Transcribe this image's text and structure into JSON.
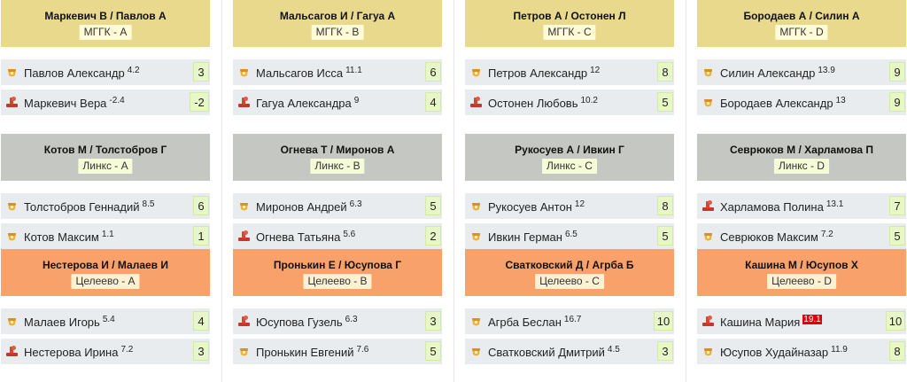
{
  "groups": [
    {
      "head_color": "#e9d98c",
      "badge_color": "#fffbd6",
      "matches": [
        {
          "title": "Маркевич В / Павлов А",
          "team": "МГГК - A",
          "players": [
            {
              "name": "Павлов Александр",
              "rating": "4.2",
              "score": "3",
              "icon": "male-player-icon",
              "hot": false
            },
            {
              "name": "Маркевич Вера",
              "rating": "-2.4",
              "score": "-2",
              "icon": "female-player-icon",
              "hot": false
            }
          ]
        },
        {
          "title": "Мальсагов И / Гагуа А",
          "team": "МГГК - B",
          "players": [
            {
              "name": "Мальсагов Исса",
              "rating": "11.1",
              "score": "6",
              "icon": "male-player-icon",
              "hot": false
            },
            {
              "name": "Гагуа Александра",
              "rating": "9",
              "score": "4",
              "icon": "female-player-icon",
              "hot": false
            }
          ]
        },
        {
          "title": "Петров А / Остонен Л",
          "team": "МГГК - C",
          "players": [
            {
              "name": "Петров Александр",
              "rating": "12",
              "score": "8",
              "icon": "male-player-icon",
              "hot": false
            },
            {
              "name": "Остонен Любовь",
              "rating": "10.2",
              "score": "5",
              "icon": "female-player-icon",
              "hot": false
            }
          ]
        },
        {
          "title": "Бородаев А / Силин А",
          "team": "МГГК - D",
          "players": [
            {
              "name": "Силин Александр",
              "rating": "13.9",
              "score": "9",
              "icon": "male-player-icon",
              "hot": false
            },
            {
              "name": "Бородаев Александр",
              "rating": "13",
              "score": "9",
              "icon": "male-player-icon",
              "hot": false
            }
          ]
        }
      ]
    },
    {
      "head_color": "#c5c8c2",
      "badge_color": "#f6fbd8",
      "matches": [
        {
          "title": "Котов М / Толстобров Г",
          "team": "Линкс - A",
          "players": [
            {
              "name": "Толстобров Геннадий",
              "rating": "8.5",
              "score": "6",
              "icon": "male-player-icon",
              "hot": false
            },
            {
              "name": "Котов Максим",
              "rating": "1.1",
              "score": "1",
              "icon": "male-player-icon",
              "hot": false
            }
          ]
        },
        {
          "title": "Огнева Т / Миронов А",
          "team": "Линкс - B",
          "players": [
            {
              "name": "Миронов Андрей",
              "rating": "6.3",
              "score": "5",
              "icon": "male-player-icon",
              "hot": false
            },
            {
              "name": "Огнева Татьяна",
              "rating": "5.6",
              "score": "2",
              "icon": "female-player-icon",
              "hot": false
            }
          ]
        },
        {
          "title": "Рукосуев А / Ивкин Г",
          "team": "Линкс - C",
          "players": [
            {
              "name": "Рукосуев Антон",
              "rating": "12",
              "score": "8",
              "icon": "male-player-icon",
              "hot": false
            },
            {
              "name": "Ивкин Герман",
              "rating": "6.5",
              "score": "5",
              "icon": "male-player-icon",
              "hot": false
            }
          ]
        },
        {
          "title": "Севрюков М / Харламова П",
          "team": "Линкс - D",
          "players": [
            {
              "name": "Харламова Полина",
              "rating": "13.1",
              "score": "7",
              "icon": "female-player-icon",
              "hot": false
            },
            {
              "name": "Севрюков Максим",
              "rating": "7.2",
              "score": "5",
              "icon": "male-player-icon",
              "hot": false
            }
          ]
        }
      ]
    },
    {
      "head_color": "#f9a16a",
      "badge_color": "#fdf1d2",
      "matches": [
        {
          "title": "Нестерова И / Малаев И",
          "team": "Целеево - A",
          "players": [
            {
              "name": "Малаев Игорь",
              "rating": "5.4",
              "score": "4",
              "icon": "male-player-icon",
              "hot": false
            },
            {
              "name": "Нестерова Ирина",
              "rating": "7.2",
              "score": "3",
              "icon": "female-player-icon",
              "hot": false
            }
          ]
        },
        {
          "title": "Пронькин Е / Юсупова Г",
          "team": "Целеево - B",
          "players": [
            {
              "name": "Юсупова Гузель",
              "rating": "6.3",
              "score": "3",
              "icon": "female-player-icon",
              "hot": false
            },
            {
              "name": "Пронькин Евгений",
              "rating": "7.6",
              "score": "5",
              "icon": "male-player-icon",
              "hot": false
            }
          ]
        },
        {
          "title": "Сватковский Д / Агрба Б",
          "team": "Целеево - C",
          "players": [
            {
              "name": "Агрба Беслан",
              "rating": "16.7",
              "score": "10",
              "icon": "male-player-icon",
              "hot": false
            },
            {
              "name": "Сватковский Дмитрий",
              "rating": "4.5",
              "score": "3",
              "icon": "male-player-icon",
              "hot": false
            }
          ]
        },
        {
          "title": "Кашина М / Юсупов Х",
          "team": "Целеево - D",
          "players": [
            {
              "name": "Кашина Мария",
              "rating": "19.1",
              "score": "10",
              "icon": "female-player-icon",
              "hot": true
            },
            {
              "name": "Юсупов Худайназар",
              "rating": "11.9",
              "score": "8",
              "icon": "male-player-icon",
              "hot": false
            }
          ]
        }
      ]
    }
  ]
}
